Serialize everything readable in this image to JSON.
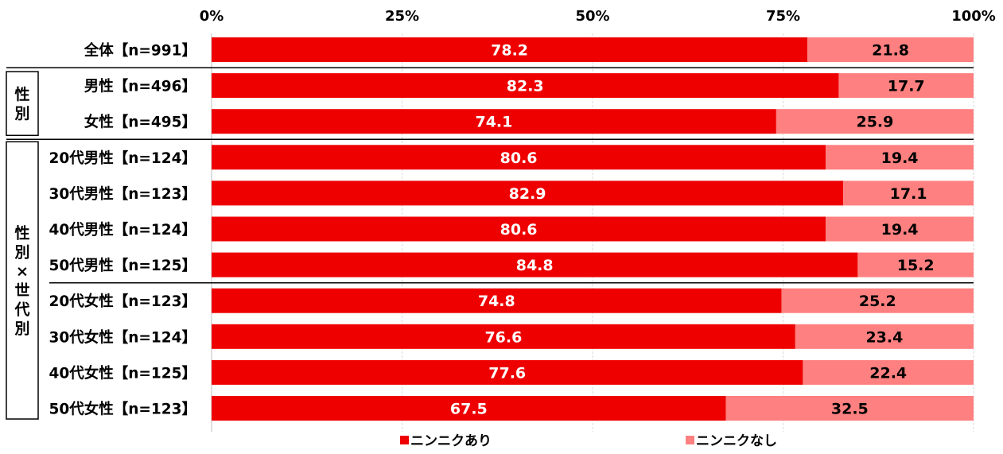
{
  "chart_data": {
    "type": "bar",
    "orientation": "horizontal",
    "stacked": "100%",
    "x_ticks": [
      "0%",
      "25%",
      "50%",
      "75%",
      "100%"
    ],
    "xlim": [
      0,
      100
    ],
    "grid": true,
    "legend_position": "bottom",
    "categories": [
      "全体【n=991】",
      "男性【n=496】",
      "女性【n=495】",
      "20代男性【n=124】",
      "30代男性【n=123】",
      "40代男性【n=124】",
      "50代男性【n=125】",
      "20代女性【n=123】",
      "30代女性【n=124】",
      "40代女性【n=125】",
      "50代女性【n=123】"
    ],
    "series": [
      {
        "name": "ニンニクあり",
        "color": "#ee0000",
        "label_color": "#ffffff",
        "values": [
          78.2,
          82.3,
          74.1,
          80.6,
          82.9,
          80.6,
          84.8,
          74.8,
          76.6,
          77.6,
          67.5
        ]
      },
      {
        "name": "ニンニクなし",
        "color": "#ff8080",
        "label_color": "#000000",
        "values": [
          21.8,
          17.7,
          25.9,
          19.4,
          17.1,
          19.4,
          15.2,
          25.2,
          23.4,
          22.4,
          32.5
        ]
      }
    ],
    "groups": [
      {
        "label": "性別",
        "rows": [
          1,
          2
        ]
      },
      {
        "label": "性別×世代別",
        "rows": [
          3,
          10
        ]
      }
    ]
  }
}
